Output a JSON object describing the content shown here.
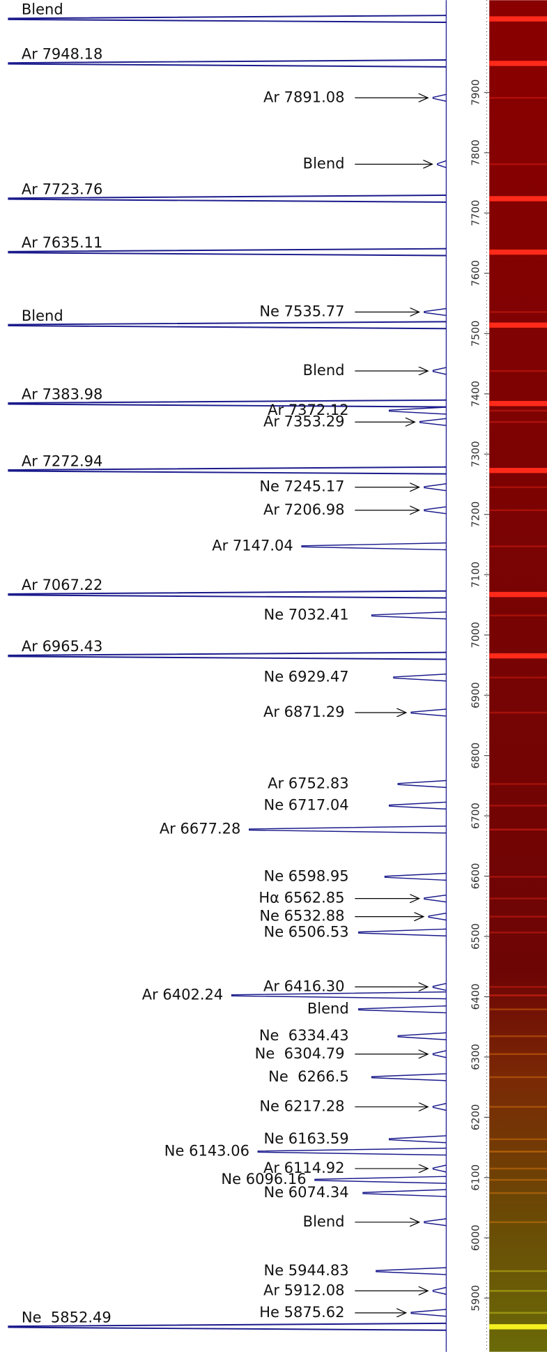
{
  "chart_data": {
    "type": "spectrum",
    "ylim": [
      5811,
      8053
    ],
    "yticks": [
      5900,
      6000,
      6100,
      6200,
      6300,
      6400,
      6500,
      6600,
      6700,
      6800,
      6900,
      7000,
      7100,
      7200,
      7300,
      7400,
      7500,
      7600,
      7700,
      7800,
      7900
    ],
    "color": "#1a1a8c",
    "lines": [
      {
        "label": "Blend",
        "wavelength": 8022,
        "strength": 1.0
      },
      {
        "label": "Ar 7948.18",
        "wavelength": 7948.18,
        "strength": 1.0
      },
      {
        "label": "Ar 7891.08",
        "wavelength": 7891.08,
        "strength": 0.03
      },
      {
        "label": "Blend",
        "wavelength": 7781,
        "strength": 0.02
      },
      {
        "label": "Ar 7723.76",
        "wavelength": 7723.76,
        "strength": 1.0
      },
      {
        "label": "Ar 7635.11",
        "wavelength": 7635.11,
        "strength": 1.0
      },
      {
        "label": "Ne 7535.77",
        "wavelength": 7535.77,
        "strength": 0.05
      },
      {
        "label": "Blend",
        "wavelength": 7514,
        "strength": 1.0
      },
      {
        "label": "Blend",
        "wavelength": 7438,
        "strength": 0.03
      },
      {
        "label": "Ar 7383.98",
        "wavelength": 7383.98,
        "strength": 1.0
      },
      {
        "label": "Ar 7372.12",
        "wavelength": 7372.12,
        "strength": 0.13
      },
      {
        "label": "Ar 7353.29",
        "wavelength": 7353.29,
        "strength": 0.06
      },
      {
        "label": "Ar 7272.94",
        "wavelength": 7272.94,
        "strength": 1.0
      },
      {
        "label": "Ne 7245.17",
        "wavelength": 7245.17,
        "strength": 0.05
      },
      {
        "label": "Ar 7206.98",
        "wavelength": 7206.98,
        "strength": 0.05
      },
      {
        "label": "Ar 7147.04",
        "wavelength": 7147.04,
        "strength": 0.33
      },
      {
        "label": "Ar 7067.22",
        "wavelength": 7067.22,
        "strength": 1.0
      },
      {
        "label": "Ne 7032.41",
        "wavelength": 7032.41,
        "strength": 0.17
      },
      {
        "label": "Ar 6965.43",
        "wavelength": 6965.43,
        "strength": 1.0
      },
      {
        "label": "Ne 6929.47",
        "wavelength": 6929.47,
        "strength": 0.12
      },
      {
        "label": "Ar 6871.29",
        "wavelength": 6871.29,
        "strength": 0.08
      },
      {
        "label": "Ar 6752.83",
        "wavelength": 6752.83,
        "strength": 0.11
      },
      {
        "label": "Ne 6717.04",
        "wavelength": 6717.04,
        "strength": 0.13
      },
      {
        "label": "Ar 6677.28",
        "wavelength": 6677.28,
        "strength": 0.45
      },
      {
        "label": "Ne 6598.95",
        "wavelength": 6598.95,
        "strength": 0.14
      },
      {
        "label": "Hα 6562.85",
        "wavelength": 6562.85,
        "strength": 0.05
      },
      {
        "label": "Ne 6532.88",
        "wavelength": 6532.88,
        "strength": 0.04
      },
      {
        "label": "Ne 6506.53",
        "wavelength": 6506.53,
        "strength": 0.2
      },
      {
        "label": "Ar 6416.30",
        "wavelength": 6416.3,
        "strength": 0.03
      },
      {
        "label": "Ar 6402.24",
        "wavelength": 6402.24,
        "strength": 0.49
      },
      {
        "label": "Blend",
        "wavelength": 6379,
        "strength": 0.2
      },
      {
        "label": "Ne  6334.43",
        "wavelength": 6334.43,
        "strength": 0.11
      },
      {
        "label": "Ne  6304.79",
        "wavelength": 6304.79,
        "strength": 0.03
      },
      {
        "label": "Ne  6266.5",
        "wavelength": 6266.5,
        "strength": 0.17
      },
      {
        "label": "Ne 6217.28",
        "wavelength": 6217.28,
        "strength": 0.03
      },
      {
        "label": "Ne 6163.59",
        "wavelength": 6163.59,
        "strength": 0.13
      },
      {
        "label": "Ne 6143.06",
        "wavelength": 6143.06,
        "strength": 0.43
      },
      {
        "label": "Ar 6114.92",
        "wavelength": 6114.92,
        "strength": 0.03
      },
      {
        "label": "Ne 6096.16",
        "wavelength": 6096.16,
        "strength": 0.3
      },
      {
        "label": "Ne 6074.34",
        "wavelength": 6074.34,
        "strength": 0.19
      },
      {
        "label": "Blend",
        "wavelength": 6026,
        "strength": 0.05
      },
      {
        "label": "Ne 5944.83",
        "wavelength": 5944.83,
        "strength": 0.16
      },
      {
        "label": "Ar 5912.08",
        "wavelength": 5912.08,
        "strength": 0.03
      },
      {
        "label": "He 5875.62",
        "wavelength": 5875.62,
        "strength": 0.08
      },
      {
        "label": "Ne  5852.49",
        "wavelength": 5852.49,
        "strength": 1.0
      }
    ]
  }
}
